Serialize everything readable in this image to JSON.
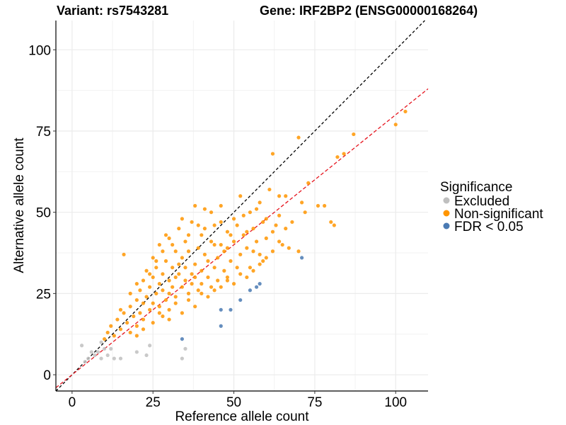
{
  "chart_data": {
    "type": "scatter",
    "title_left": "Variant: rs7543281",
    "title_right": "Gene: IRF2BP2 (ENSG00000168264)",
    "xlabel": "Reference allele count",
    "ylabel": "Alternative allele count",
    "xlim": [
      -5,
      110
    ],
    "ylim": [
      -5,
      109
    ],
    "x_ticks": [
      0,
      25,
      50,
      75,
      100
    ],
    "y_ticks": [
      0,
      25,
      50,
      75,
      100
    ],
    "grid": true,
    "legend": {
      "title": "Significance",
      "position": "right",
      "entries": [
        {
          "label": "Excluded",
          "color": "#bfbfbf"
        },
        {
          "label": "Non-significant",
          "color": "#ff9500"
        },
        {
          "label": "FDR < 0.05",
          "color": "#4a7ab3"
        }
      ]
    },
    "reference_lines": [
      {
        "name": "identity",
        "slope": 1.0,
        "intercept": 0,
        "color": "#000000",
        "dash": "4,3"
      },
      {
        "name": "fit",
        "slope": 0.8,
        "intercept": 0,
        "color": "#e6141e",
        "dash": "5,3"
      }
    ],
    "series": [
      {
        "name": "Excluded",
        "color": "#bfbfbf",
        "points": [
          [
            3,
            9
          ],
          [
            4,
            4
          ],
          [
            5,
            5
          ],
          [
            6,
            7
          ],
          [
            7,
            6
          ],
          [
            8,
            7
          ],
          [
            9,
            10
          ],
          [
            9,
            5
          ],
          [
            10,
            8
          ],
          [
            11,
            6
          ],
          [
            12,
            8
          ],
          [
            13,
            5
          ],
          [
            15,
            5
          ],
          [
            20,
            7
          ],
          [
            23,
            6
          ],
          [
            24,
            9
          ],
          [
            34,
            5
          ],
          [
            35,
            8
          ]
        ]
      },
      {
        "name": "Non-significant",
        "color": "#ff9500",
        "points": [
          [
            10,
            11
          ],
          [
            11,
            13
          ],
          [
            12,
            15
          ],
          [
            13,
            12
          ],
          [
            14,
            17
          ],
          [
            15,
            14
          ],
          [
            16,
            19
          ],
          [
            16,
            37
          ],
          [
            17,
            16
          ],
          [
            18,
            21
          ],
          [
            18,
            13
          ],
          [
            19,
            18
          ],
          [
            20,
            23
          ],
          [
            20,
            15
          ],
          [
            21,
            26
          ],
          [
            21,
            19
          ],
          [
            22,
            29
          ],
          [
            22,
            17
          ],
          [
            23,
            24
          ],
          [
            23,
            32
          ],
          [
            24,
            20
          ],
          [
            24,
            27
          ],
          [
            25,
            36
          ],
          [
            25,
            30
          ],
          [
            25,
            22
          ],
          [
            26,
            25
          ],
          [
            26,
            33
          ],
          [
            27,
            28
          ],
          [
            27,
            40
          ],
          [
            27,
            21
          ],
          [
            28,
            31
          ],
          [
            28,
            26
          ],
          [
            29,
            35
          ],
          [
            29,
            23
          ],
          [
            30,
            29
          ],
          [
            30,
            42
          ],
          [
            30,
            25
          ],
          [
            31,
            27
          ],
          [
            31,
            33
          ],
          [
            32,
            38
          ],
          [
            32,
            30
          ],
          [
            32,
            24
          ],
          [
            33,
            31
          ],
          [
            33,
            45
          ],
          [
            34,
            27
          ],
          [
            34,
            36
          ],
          [
            35,
            33
          ],
          [
            35,
            29
          ],
          [
            35,
            41
          ],
          [
            36,
            25
          ],
          [
            36,
            38
          ],
          [
            37,
            31
          ],
          [
            37,
            47
          ],
          [
            37,
            28
          ],
          [
            38,
            34
          ],
          [
            38,
            30
          ],
          [
            39,
            39
          ],
          [
            39,
            26
          ],
          [
            40,
            43
          ],
          [
            40,
            32
          ],
          [
            40,
            28
          ],
          [
            41,
            37
          ],
          [
            41,
            51
          ],
          [
            42,
            30
          ],
          [
            42,
            35
          ],
          [
            43,
            41
          ],
          [
            43,
            27
          ],
          [
            44,
            33
          ],
          [
            44,
            46
          ],
          [
            45,
            36
          ],
          [
            45,
            29
          ],
          [
            46,
            40
          ],
          [
            46,
            52
          ],
          [
            47,
            32
          ],
          [
            47,
            38
          ],
          [
            48,
            44
          ],
          [
            48,
            30
          ],
          [
            49,
            35
          ],
          [
            50,
            48
          ],
          [
            50,
            41
          ],
          [
            51,
            33
          ],
          [
            52,
            37
          ],
          [
            52,
            55
          ],
          [
            53,
            43
          ],
          [
            54,
            39
          ],
          [
            55,
            50
          ],
          [
            55,
            33
          ],
          [
            56,
            45
          ],
          [
            57,
            41
          ],
          [
            58,
            53
          ],
          [
            58,
            37
          ],
          [
            59,
            47
          ],
          [
            60,
            42
          ],
          [
            61,
            57
          ],
          [
            62,
            44
          ],
          [
            62,
            68
          ],
          [
            64,
            49
          ],
          [
            65,
            40
          ],
          [
            66,
            55
          ],
          [
            68,
            47
          ],
          [
            70,
            38
          ],
          [
            70,
            73
          ],
          [
            71,
            53
          ],
          [
            72,
            50
          ],
          [
            73,
            59
          ],
          [
            76,
            52
          ],
          [
            78,
            52
          ],
          [
            80,
            47
          ],
          [
            81,
            46
          ],
          [
            82,
            67
          ],
          [
            84,
            68
          ],
          [
            87,
            74
          ],
          [
            100,
            77
          ],
          [
            103,
            81
          ],
          [
            15,
            20
          ],
          [
            18,
            25
          ],
          [
            20,
            28
          ],
          [
            22,
            22
          ],
          [
            24,
            31
          ],
          [
            26,
            35
          ],
          [
            28,
            38
          ],
          [
            29,
            43
          ],
          [
            31,
            40
          ],
          [
            33,
            34
          ],
          [
            34,
            48
          ],
          [
            36,
            43
          ],
          [
            38,
            52
          ],
          [
            39,
            46
          ],
          [
            41,
            45
          ],
          [
            43,
            50
          ],
          [
            44,
            40
          ],
          [
            46,
            47
          ],
          [
            48,
            39
          ],
          [
            49,
            43
          ],
          [
            51,
            46
          ],
          [
            53,
            49
          ],
          [
            54,
            44
          ],
          [
            56,
            38
          ],
          [
            57,
            51
          ],
          [
            59,
            35
          ],
          [
            60,
            48
          ],
          [
            63,
            46
          ],
          [
            64,
            55
          ],
          [
            66,
            45
          ],
          [
            28,
            18
          ],
          [
            30,
            20
          ],
          [
            32,
            22
          ],
          [
            34,
            19
          ],
          [
            36,
            23
          ],
          [
            38,
            21
          ],
          [
            40,
            25
          ],
          [
            42,
            24
          ],
          [
            44,
            26
          ],
          [
            46,
            27
          ],
          [
            48,
            29
          ],
          [
            50,
            28
          ],
          [
            52,
            31
          ],
          [
            54,
            30
          ],
          [
            56,
            32
          ],
          [
            58,
            34
          ],
          [
            60,
            36
          ],
          [
            62,
            38
          ],
          [
            64,
            41
          ],
          [
            67,
            39
          ],
          [
            20,
            12
          ],
          [
            22,
            14
          ],
          [
            25,
            16
          ],
          [
            27,
            19
          ],
          [
            30,
            17
          ]
        ]
      },
      {
        "name": "FDR < 0.05",
        "color": "#4a7ab3",
        "points": [
          [
            34,
            11
          ],
          [
            46,
            15
          ],
          [
            46,
            20
          ],
          [
            49,
            20
          ],
          [
            52,
            23
          ],
          [
            55,
            26
          ],
          [
            57,
            27
          ],
          [
            58,
            28
          ],
          [
            71,
            36
          ]
        ]
      }
    ]
  }
}
